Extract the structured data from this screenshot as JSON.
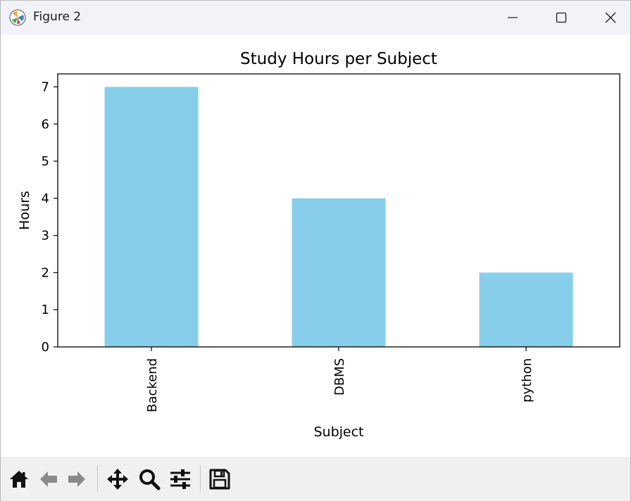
{
  "window": {
    "title": "Figure 2"
  },
  "toolbar": {
    "buttons": [
      {
        "name": "home-icon"
      },
      {
        "name": "back-arrow-icon"
      },
      {
        "name": "forward-arrow-icon"
      },
      {
        "name": "pan-icon"
      },
      {
        "name": "zoom-icon"
      },
      {
        "name": "configure-subplots-icon"
      },
      {
        "name": "save-icon"
      }
    ]
  },
  "colors": {
    "bar": "#87ceeb",
    "axis": "#000000",
    "titlebar": "#f1f3f9",
    "toolbar": "#f0f0f0"
  },
  "chart_data": {
    "type": "bar",
    "title": "Study Hours per Subject",
    "xlabel": "Subject",
    "ylabel": "Hours",
    "categories": [
      "Backend",
      "DBMS",
      "python"
    ],
    "values": [
      7,
      4,
      2
    ],
    "ylim": [
      0,
      7.35
    ],
    "yticks": [
      "0",
      "1",
      "2",
      "3",
      "4",
      "5",
      "6",
      "7"
    ],
    "xtick_rotation": "vertical",
    "grid": false
  }
}
